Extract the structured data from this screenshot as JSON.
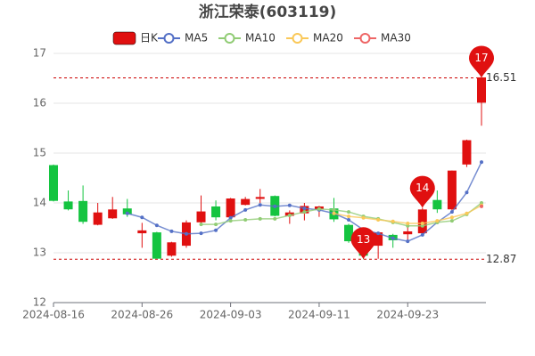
{
  "chart_data": {
    "type": "candlestick",
    "title": "浙江荣泰(603119)",
    "candle_name": "日K",
    "up_color": "#e01010",
    "down_color": "#14c440",
    "categories": [
      "2024-08-16",
      null,
      null,
      null,
      null,
      null,
      "2024-08-26",
      null,
      null,
      null,
      null,
      null,
      "2024-09-03",
      null,
      null,
      null,
      null,
      null,
      "2024-09-11",
      null,
      null,
      null,
      null,
      null,
      "2024-09-23",
      null,
      null,
      null,
      null,
      null
    ],
    "open": [
      14.75,
      14.02,
      14.03,
      13.57,
      13.7,
      13.88,
      13.4,
      13.4,
      12.95,
      13.15,
      13.62,
      13.92,
      13.72,
      13.97,
      14.09,
      14.13,
      13.75,
      13.8,
      13.88,
      13.88,
      13.55,
      13.18,
      13.15,
      13.35,
      13.38,
      13.4,
      14.05,
      13.88,
      14.78,
      16.02
    ],
    "close": [
      14.05,
      13.88,
      13.63,
      13.8,
      13.86,
      13.78,
      13.44,
      12.89,
      13.2,
      13.6,
      13.82,
      13.72,
      14.08,
      14.07,
      14.11,
      13.75,
      13.8,
      13.93,
      13.92,
      13.68,
      13.24,
      12.95,
      13.4,
      13.26,
      13.42,
      13.86,
      13.88,
      14.64,
      15.25,
      16.51
    ],
    "high": [
      14.77,
      14.25,
      14.35,
      14.0,
      14.12,
      14.08,
      13.6,
      13.42,
      13.22,
      13.65,
      14.15,
      14.05,
      14.1,
      14.12,
      14.28,
      14.15,
      13.85,
      14.0,
      13.94,
      14.1,
      13.58,
      13.22,
      13.42,
      13.38,
      13.55,
      13.9,
      14.25,
      14.65,
      15.27,
      16.51
    ],
    "low": [
      14.03,
      13.85,
      13.58,
      13.55,
      13.68,
      13.72,
      13.1,
      12.88,
      12.92,
      13.1,
      13.55,
      13.65,
      13.68,
      13.95,
      14.0,
      13.73,
      13.58,
      13.65,
      13.72,
      13.62,
      13.2,
      12.87,
      12.88,
      13.1,
      13.2,
      13.35,
      13.8,
      13.85,
      14.72,
      15.55
    ],
    "series": [
      {
        "name": "MA5",
        "color": "#5470c6",
        "values": [
          null,
          null,
          null,
          null,
          null,
          13.79,
          13.71,
          13.55,
          13.43,
          13.38,
          13.39,
          13.45,
          13.7,
          13.86,
          13.96,
          13.93,
          13.95,
          13.89,
          13.86,
          13.79,
          13.66,
          13.46,
          13.39,
          13.29,
          13.23,
          13.36,
          13.61,
          13.82,
          14.21,
          14.82
        ]
      },
      {
        "name": "MA10",
        "color": "#91cc75",
        "values": [
          null,
          null,
          null,
          null,
          null,
          null,
          null,
          null,
          null,
          null,
          13.57,
          13.57,
          13.64,
          13.66,
          13.68,
          13.68,
          13.75,
          13.82,
          13.88,
          13.86,
          13.82,
          13.73,
          13.68,
          13.61,
          13.54,
          13.54,
          13.61,
          13.64,
          13.77,
          14.0
        ]
      },
      {
        "name": "MA20",
        "color": "#fac858",
        "values": [
          null,
          null,
          null,
          null,
          null,
          null,
          null,
          null,
          null,
          null,
          null,
          null,
          null,
          null,
          null,
          null,
          null,
          null,
          null,
          13.79,
          13.73,
          13.7,
          13.66,
          13.63,
          13.59,
          13.59,
          13.64,
          13.71,
          13.79,
          13.95
        ]
      },
      {
        "name": "MA30",
        "color": "#ee6666",
        "values": [
          null,
          null,
          null,
          null,
          null,
          null,
          null,
          null,
          null,
          null,
          null,
          null,
          null,
          null,
          null,
          null,
          null,
          null,
          null,
          null,
          null,
          null,
          null,
          null,
          null,
          null,
          null,
          null,
          null,
          13.93
        ]
      }
    ],
    "pins": [
      {
        "label": "17",
        "value": 16.51
      },
      {
        "label": "14",
        "value": 13.9
      },
      {
        "label": "13",
        "value": 12.87
      }
    ],
    "pin_color": "#e01010",
    "marklines": [
      16.51,
      12.87
    ],
    "ylim": [
      12,
      17
    ],
    "yticks": [
      12,
      13,
      14,
      15,
      16,
      17
    ],
    "grid": true
  }
}
